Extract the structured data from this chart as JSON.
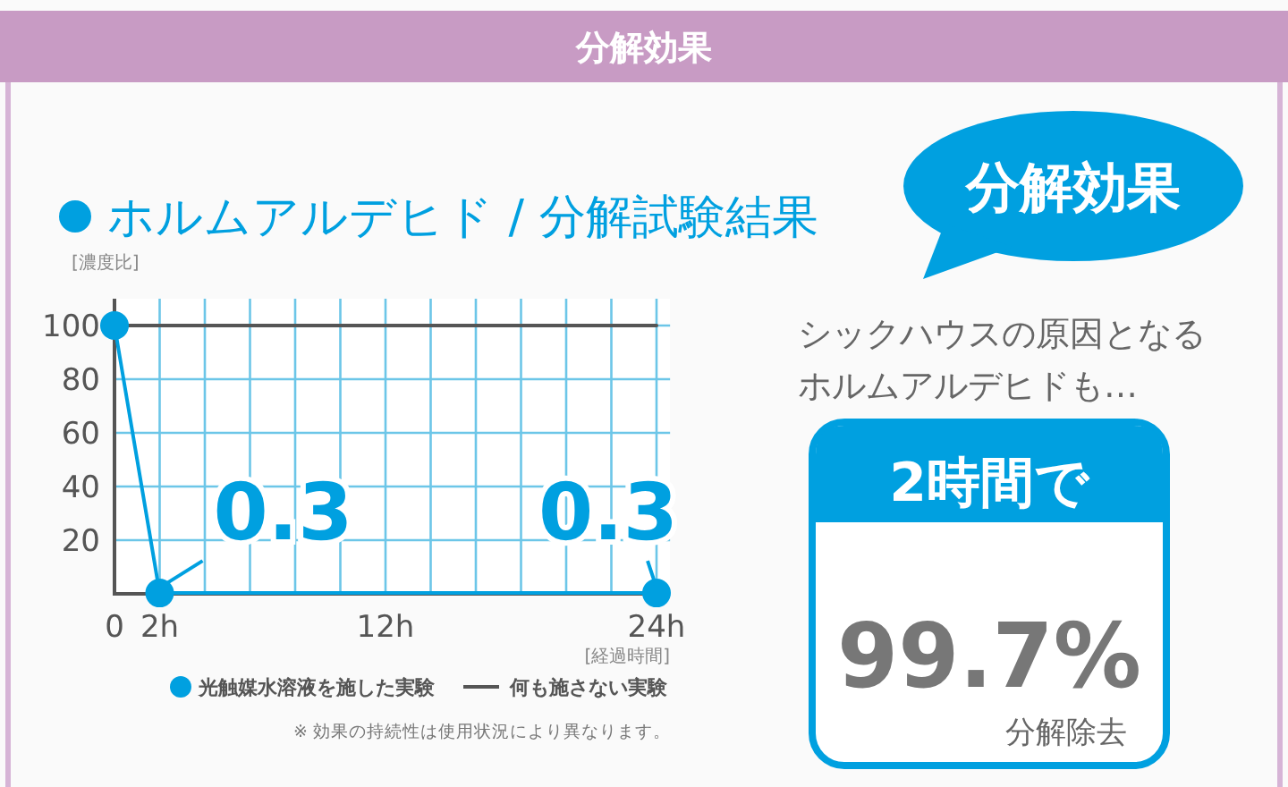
{
  "chart_data": {
    "type": "line",
    "title": "分解効果",
    "subtitle": "ホルムアルデヒド / 分解試験結果",
    "ylabel": "[濃度比]",
    "xlabel": "[経過時間]",
    "xlim": [
      0,
      24.6
    ],
    "ylim": [
      0,
      110
    ],
    "xticks": [
      {
        "value": 0,
        "label": "0"
      },
      {
        "value": 2,
        "label": "2h"
      },
      {
        "value": 4,
        "label": null
      },
      {
        "value": 6,
        "label": null
      },
      {
        "value": 8,
        "label": null
      },
      {
        "value": 10,
        "label": null
      },
      {
        "value": 12,
        "label": "12h"
      },
      {
        "value": 14,
        "label": null
      },
      {
        "value": 16,
        "label": null
      },
      {
        "value": 18,
        "label": null
      },
      {
        "value": 20,
        "label": null
      },
      {
        "value": 22,
        "label": null
      },
      {
        "value": 24,
        "label": "24h"
      }
    ],
    "yticks": [
      20,
      40,
      60,
      80,
      100
    ],
    "grid": true,
    "legend": "bottom",
    "series": [
      {
        "name": "光触媒水溶液を施した実験",
        "color": "#00a0e0",
        "x": [
          0,
          2,
          24
        ],
        "values": [
          100,
          0.3,
          0.3
        ],
        "marker": "circle",
        "value_labels": [
          null,
          "0.3",
          "0.3"
        ]
      },
      {
        "name": "何も施さない実験",
        "color": "#555555",
        "x": [
          0,
          24
        ],
        "values": [
          100,
          100
        ],
        "marker": "none"
      }
    ],
    "annotations": [
      "※ 効果の持続性は使用状況により異なります。",
      "分解効果",
      "シックハウスの原因となる",
      "ホルムアルデヒドも…",
      "2時間で",
      "99.7%",
      "分解除去"
    ]
  }
}
